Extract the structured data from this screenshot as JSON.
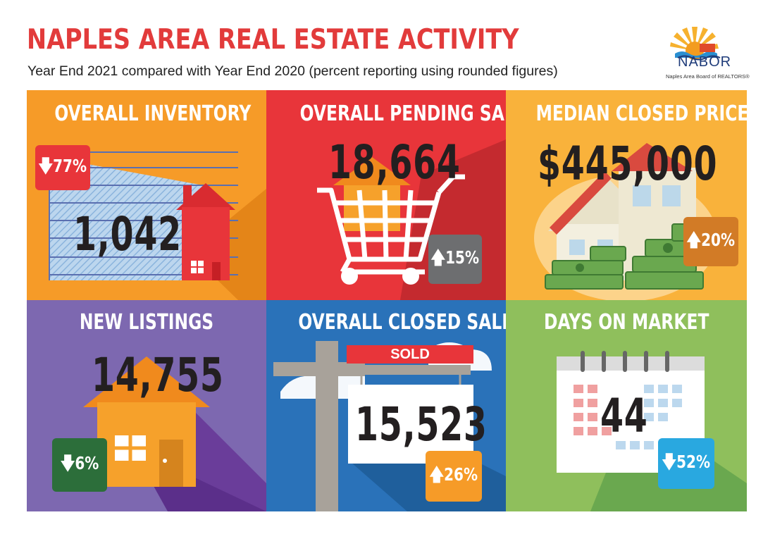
{
  "header": {
    "title": "NAPLES AREA REAL ESTATE ACTIVITY",
    "subtitle": "Year End 2021 compared with Year End 2020 (percent reporting using rounded figures)",
    "logo_name": "NABOR",
    "logo_tagline": "Naples Area Board of REALTORS®"
  },
  "colors": {
    "title_red": "#e23b3b",
    "orange": "#f69b28",
    "red": "#e8353a",
    "light_orange": "#f9b23b",
    "purple": "#7d68b0",
    "blue": "#2a72b9",
    "green": "#8fbf5c"
  },
  "panels": [
    {
      "title": "OVERALL INVENTORY",
      "value": "1,042",
      "change": "77%",
      "direction": "down",
      "icon": "house-graph-icon"
    },
    {
      "title": "OVERALL PENDING SALES",
      "value": "18,664",
      "change": "15%",
      "direction": "up",
      "icon": "shopping-cart-icon"
    },
    {
      "title": "MEDIAN CLOSED PRICE",
      "value": "$445,000",
      "change": "20%",
      "direction": "up",
      "icon": "house-money-icon"
    },
    {
      "title": "NEW LISTINGS",
      "value": "14,755",
      "change": "6%",
      "direction": "down",
      "icon": "house-icon"
    },
    {
      "title": "OVERALL CLOSED SALES",
      "value": "15,523",
      "change": "26%",
      "direction": "up",
      "icon": "sold-sign-icon",
      "sign_text": "SOLD"
    },
    {
      "title": "DAYS ON MARKET",
      "value": "44",
      "change": "52%",
      "direction": "down",
      "icon": "calendar-icon"
    }
  ],
  "arrows": {
    "up": "🡅",
    "down": "🡇"
  }
}
